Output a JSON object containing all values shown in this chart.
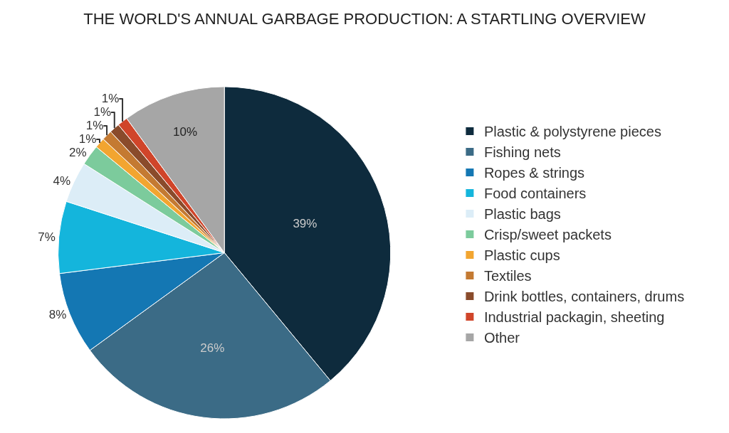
{
  "chart_data": {
    "type": "pie",
    "title": "THE WORLD'S ANNUAL GARBAGE PRODUCTION: A STARTLING OVERVIEW",
    "categories": [
      "Plastic & polystyrene pieces",
      "Fishing nets",
      "Ropes & strings",
      "Food containers",
      "Plastic bags",
      "Crisp/sweet packets",
      "Plastic cups",
      "Textiles",
      "Drink bottles, containers, drums",
      "Industrial packagin, sheeting",
      "Other"
    ],
    "values": [
      39,
      26,
      8,
      7,
      4,
      2,
      1,
      1,
      1,
      1,
      10
    ],
    "value_labels": [
      "39%",
      "26%",
      "8%",
      "7%",
      "4%",
      "2%",
      "1%",
      "1%",
      "1%",
      "1%",
      "10%"
    ],
    "colors": [
      "#0e2b3d",
      "#3b6b86",
      "#1477b3",
      "#14b5dc",
      "#dcedf7",
      "#7ccb9c",
      "#f2a530",
      "#c47a32",
      "#8a4b2b",
      "#d0452a",
      "#a6a6a6"
    ],
    "legend": "right"
  }
}
